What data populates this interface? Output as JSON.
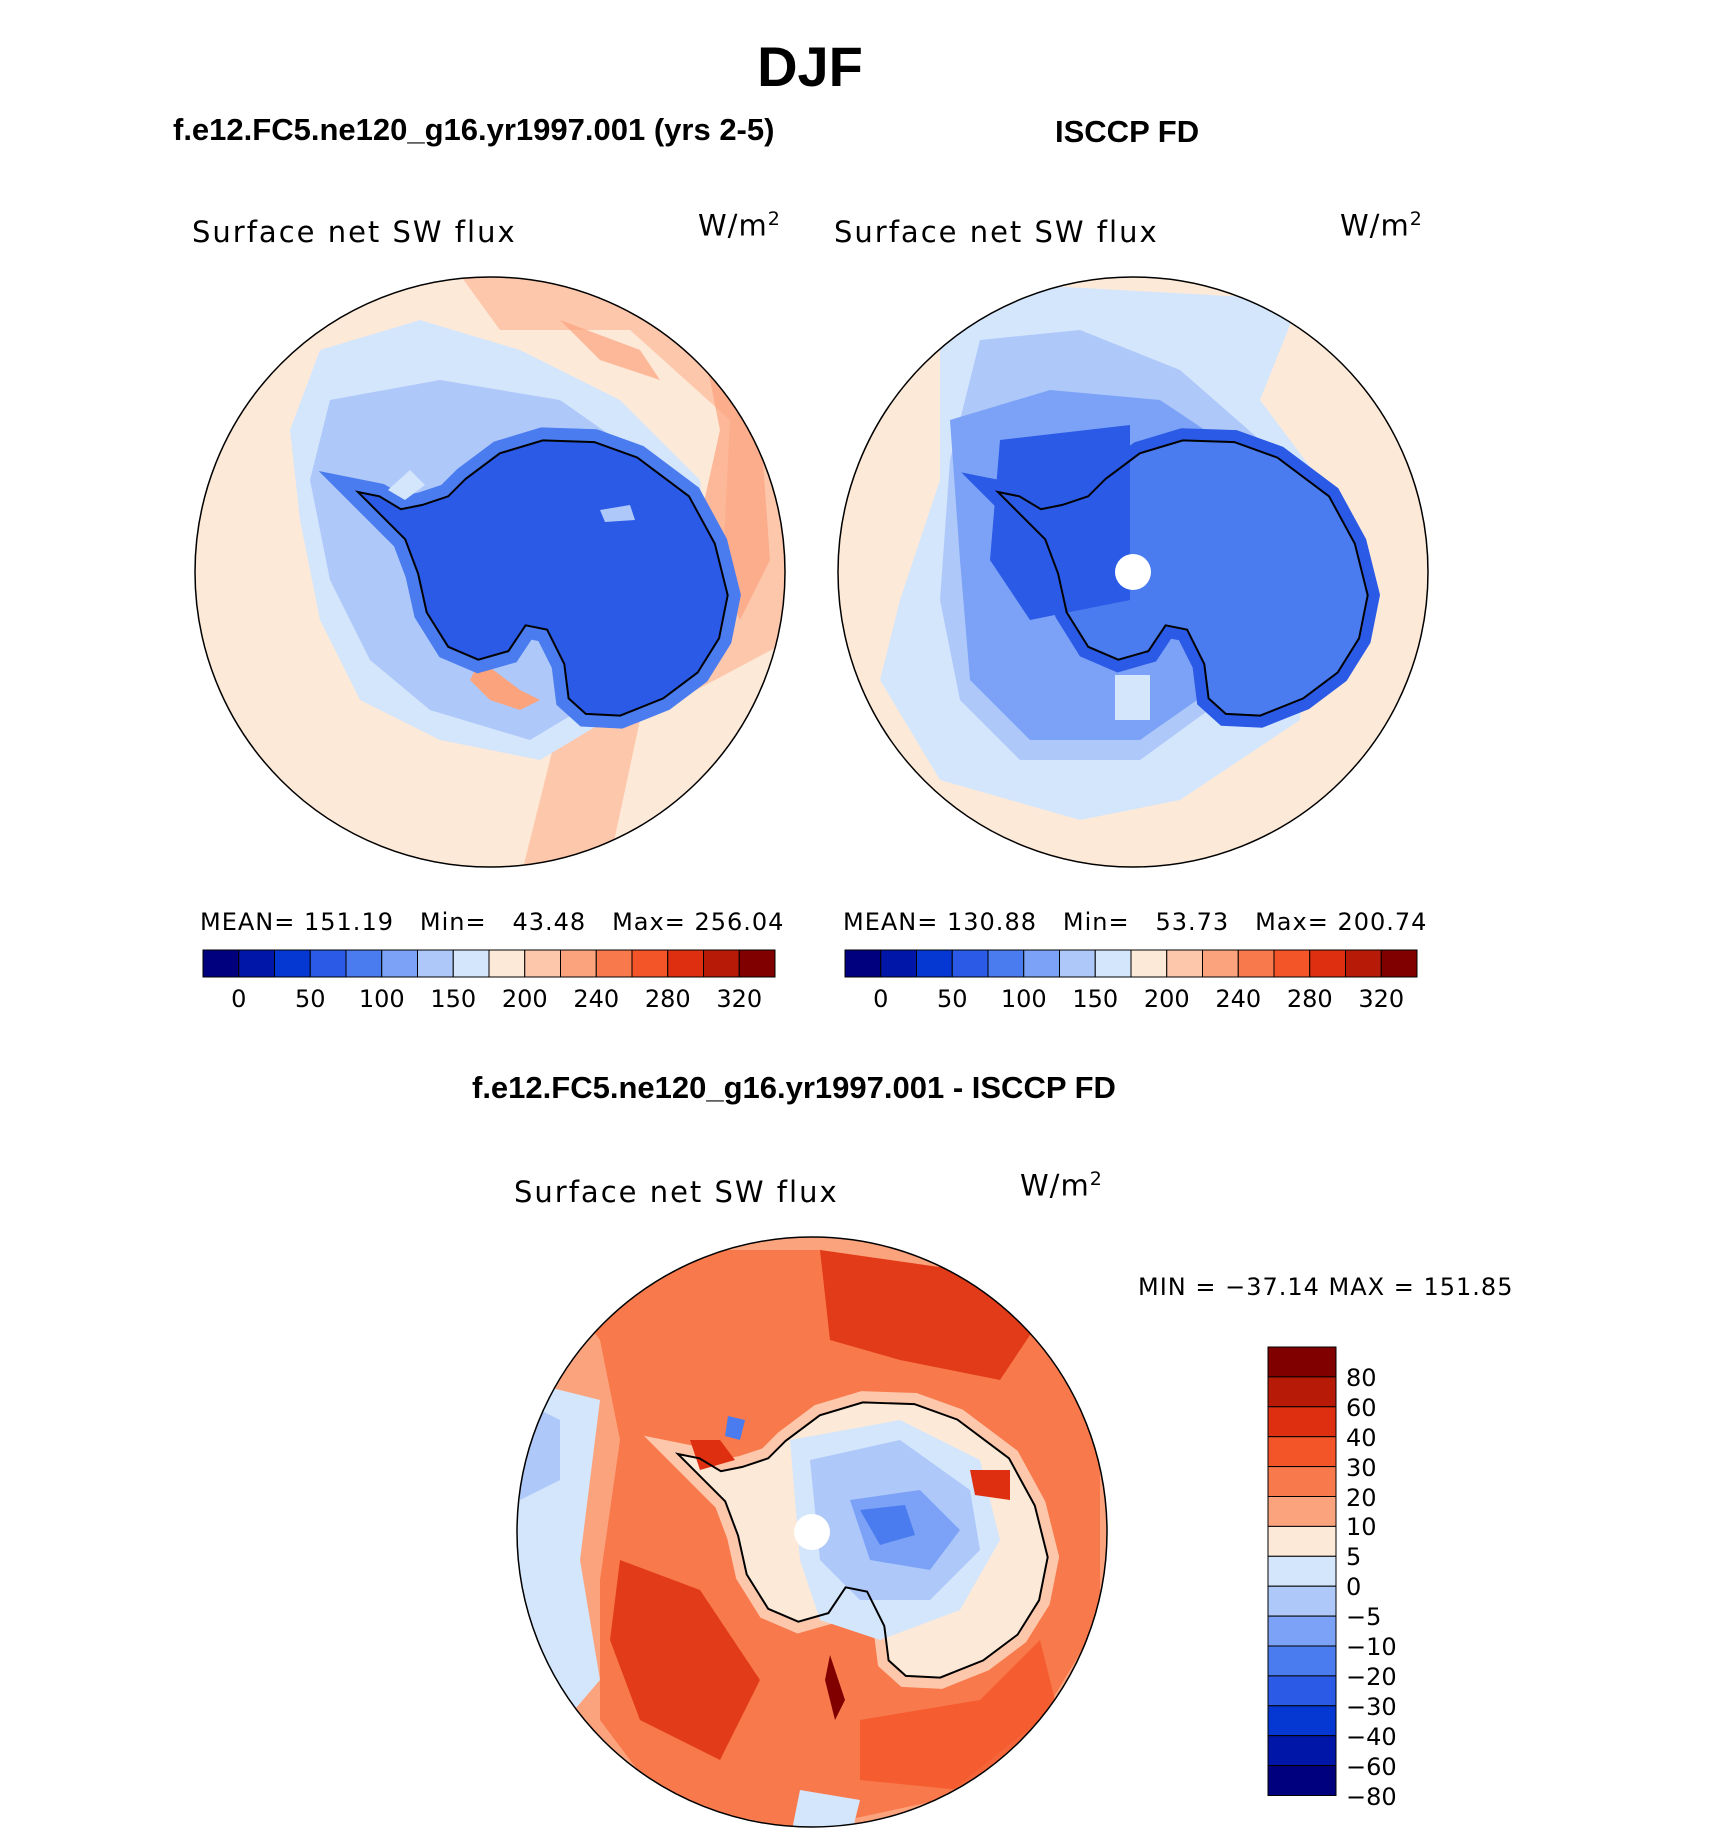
{
  "title": "DJF",
  "panels": [
    {
      "id": "model",
      "title": "f.e12.FC5.ne120_g16.yr1997.001 (yrs 2-5)",
      "variable": "Surface net SW flux",
      "units": "W/m",
      "units_exp": "2",
      "stats": {
        "mean_label": "MEAN=",
        "mean": "151.19",
        "min_label": "Min=",
        "min": "43.48",
        "max_label": "Max=",
        "max": "256.04"
      }
    },
    {
      "id": "obs",
      "title": "ISCCP FD",
      "variable": "Surface net SW flux",
      "units": "W/m",
      "units_exp": "2",
      "stats": {
        "mean_label": "MEAN=",
        "mean": "130.88",
        "min_label": "Min=",
        "min": "53.73",
        "max_label": "Max=",
        "max": "200.74"
      }
    }
  ],
  "diff_panel": {
    "title": "f.e12.FC5.ne120_g16.yr1997.001 - ISCCP FD",
    "variable": "Surface net SW flux",
    "units": "W/m",
    "units_exp": "2",
    "minmax_text": "MIN = −37.14 MAX = 151.85"
  },
  "colorbar_main": {
    "colors": [
      "#00007e",
      "#0016a8",
      "#0538d2",
      "#2a5ae6",
      "#4a7cf0",
      "#7ba2f6",
      "#aec8fa",
      "#d4e6fc",
      "#fde9d7",
      "#fdc7ac",
      "#fba37d",
      "#f87a4c",
      "#f45528",
      "#de3010",
      "#b81a08",
      "#800000"
    ],
    "tick_labels": [
      "0",
      "50",
      "100",
      "150",
      "200",
      "240",
      "280",
      "320"
    ]
  },
  "colorbar_diff": {
    "colors": [
      "#800000",
      "#b81a08",
      "#de3010",
      "#f45528",
      "#f87a4c",
      "#fba37d",
      "#fde9d7",
      "#d4e6fc",
      "#aec8fa",
      "#7ba2f6",
      "#4a7cf0",
      "#2a5ae6",
      "#0538d2",
      "#0016a8",
      "#00007e"
    ],
    "tick_labels": [
      "80",
      "60",
      "40",
      "30",
      "20",
      "10",
      "5",
      "0",
      "−5",
      "−10",
      "−20",
      "−30",
      "−40",
      "−60",
      "−80"
    ]
  },
  "chart_data": [
    {
      "type": "heatmap",
      "projection": "south polar stereographic",
      "title": "f.e12.FC5.ne120_g16.yr1997.001 (yrs 2-5)",
      "variable": "Surface net SW flux",
      "units": "W/m2",
      "contour_levels": [
        0,
        25,
        50,
        75,
        100,
        125,
        150,
        175,
        200,
        220,
        240,
        260,
        280,
        300,
        320
      ],
      "mean": 151.19,
      "min": 43.48,
      "max": 256.04
    },
    {
      "type": "heatmap",
      "projection": "south polar stereographic",
      "title": "ISCCP FD",
      "variable": "Surface net SW flux",
      "units": "W/m2",
      "contour_levels": [
        0,
        25,
        50,
        75,
        100,
        125,
        150,
        175,
        200,
        220,
        240,
        260,
        280,
        300,
        320
      ],
      "mean": 130.88,
      "min": 53.73,
      "max": 200.74
    },
    {
      "type": "heatmap",
      "projection": "south polar stereographic",
      "title": "f.e12.FC5.ne120_g16.yr1997.001 - ISCCP FD",
      "variable": "Surface net SW flux",
      "units": "W/m2",
      "contour_levels": [
        -80,
        -60,
        -40,
        -30,
        -20,
        -10,
        -5,
        0,
        5,
        10,
        20,
        30,
        40,
        60,
        80
      ],
      "min": -37.14,
      "max": 151.85
    }
  ]
}
